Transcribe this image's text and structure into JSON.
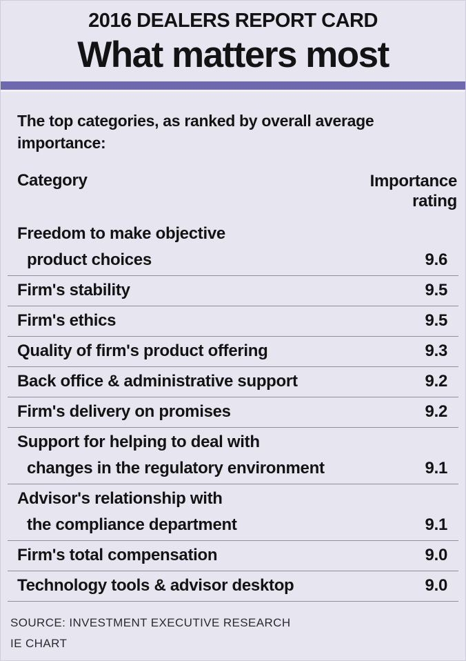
{
  "colors": {
    "bg": "#e7e5f0",
    "accent": "#6e68ae",
    "ink": "#131313",
    "line": "#8e8e98"
  },
  "header": {
    "kicker": "2016 DEALERS REPORT CARD",
    "title": "What matters most"
  },
  "intro": "The top categories, as ranked by overall average importance:",
  "table": {
    "col_category": "Category",
    "col_rating_line1": "Importance",
    "col_rating_line2": "rating",
    "rows": [
      {
        "lines": [
          "Freedom to make objective",
          "product choices"
        ],
        "rating": "9.6"
      },
      {
        "lines": [
          "Firm's stability"
        ],
        "rating": "9.5"
      },
      {
        "lines": [
          "Firm's ethics"
        ],
        "rating": "9.5"
      },
      {
        "lines": [
          "Quality of firm's product offering"
        ],
        "rating": "9.3"
      },
      {
        "lines": [
          "Back office & administrative support"
        ],
        "rating": "9.2"
      },
      {
        "lines": [
          "Firm's delivery on promises"
        ],
        "rating": "9.2"
      },
      {
        "lines": [
          "Support for helping to deal with",
          "changes in the regulatory environment"
        ],
        "rating": "9.1"
      },
      {
        "lines": [
          "Advisor's relationship with",
          "the compliance department"
        ],
        "rating": "9.1"
      },
      {
        "lines": [
          "Firm's total compensation"
        ],
        "rating": "9.0"
      },
      {
        "lines": [
          "Technology tools & advisor desktop"
        ],
        "rating": "9.0"
      }
    ]
  },
  "footer": {
    "source": "SOURCE: INVESTMENT EXECUTIVE RESEARCH",
    "credit": "IE CHART"
  },
  "chart_data": {
    "type": "table",
    "title": "What matters most",
    "kicker": "2016 DEALERS REPORT CARD",
    "subtitle": "The top categories, as ranked by overall average importance:",
    "columns": [
      "Category",
      "Importance rating"
    ],
    "categories": [
      "Freedom to make objective product choices",
      "Firm's stability",
      "Firm's ethics",
      "Quality of firm's product offering",
      "Back office & administrative support",
      "Firm's delivery on promises",
      "Support for helping to deal with changes in the regulatory environment",
      "Advisor's relationship with the compliance department",
      "Firm's total compensation",
      "Technology tools & advisor desktop"
    ],
    "values": [
      9.6,
      9.5,
      9.5,
      9.3,
      9.2,
      9.2,
      9.1,
      9.1,
      9.0,
      9.0
    ],
    "source": "SOURCE: INVESTMENT EXECUTIVE RESEARCH",
    "credit": "IE CHART"
  }
}
